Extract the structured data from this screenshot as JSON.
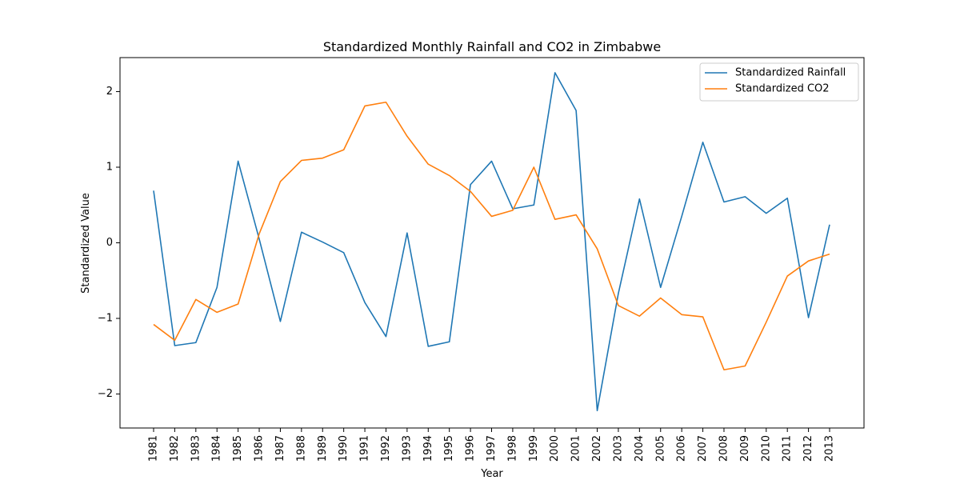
{
  "chart_data": {
    "type": "line",
    "title": "Standardized Monthly Rainfall and CO2 in Zimbabwe",
    "xlabel": "Year",
    "ylabel": "Standardized Value",
    "x": [
      "1981",
      "1982",
      "1983",
      "1984",
      "1985",
      "1986",
      "1987",
      "1988",
      "1989",
      "1990",
      "1991",
      "1992",
      "1993",
      "1994",
      "1995",
      "1996",
      "1997",
      "1998",
      "1999",
      "2000",
      "2001",
      "2002",
      "2003",
      "2004",
      "2005",
      "2006",
      "2007",
      "2008",
      "2009",
      "2010",
      "2011",
      "2012",
      "2013"
    ],
    "ylim": [
      -2.45,
      2.45
    ],
    "yticks": [
      -2,
      -1,
      0,
      1,
      2
    ],
    "ytick_labels": [
      "−2",
      "−1",
      "0",
      "1",
      "2"
    ],
    "grid": false,
    "legend": "top-right",
    "series": [
      {
        "name": "Standardized Rainfall",
        "color": "#1f77b4",
        "values": [
          0.69,
          -1.36,
          -1.32,
          -0.59,
          1.08,
          0.05,
          -1.04,
          0.14,
          0.01,
          -0.13,
          -0.79,
          -1.24,
          0.13,
          -1.37,
          -1.31,
          0.77,
          1.08,
          0.45,
          0.5,
          2.25,
          1.75,
          -2.22,
          -0.67,
          0.58,
          -0.59,
          0.35,
          1.33,
          0.54,
          0.61,
          0.39,
          0.59,
          -0.99,
          0.24
        ]
      },
      {
        "name": "Standardized CO2",
        "color": "#ff7f0e",
        "values": [
          -1.08,
          -1.29,
          -0.75,
          -0.92,
          -0.81,
          0.12,
          0.81,
          1.09,
          1.12,
          1.23,
          1.81,
          1.86,
          1.41,
          1.04,
          0.89,
          0.68,
          0.35,
          0.43,
          1.0,
          0.31,
          0.37,
          -0.08,
          -0.83,
          -0.97,
          -0.73,
          -0.95,
          -0.98,
          -1.68,
          -1.63,
          -1.05,
          -0.44,
          -0.24,
          -0.15
        ]
      }
    ]
  }
}
